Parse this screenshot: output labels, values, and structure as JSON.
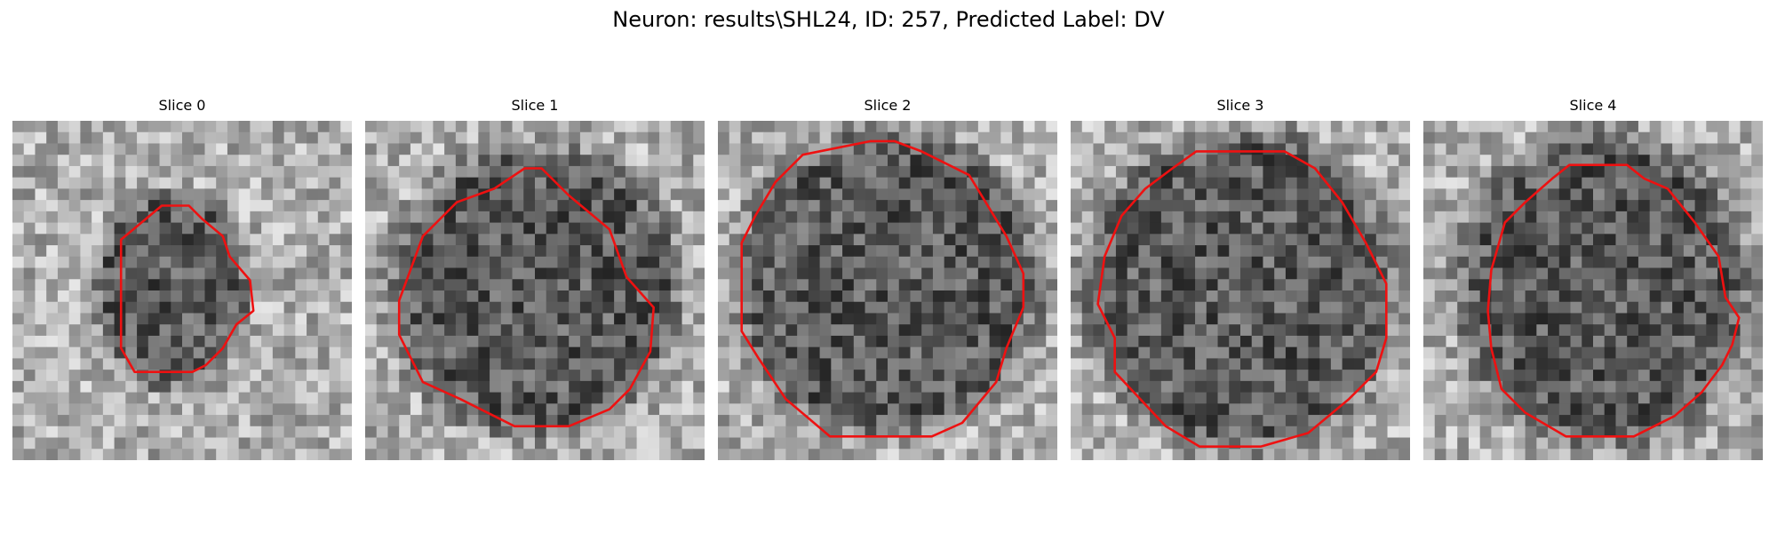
{
  "figure": {
    "title": "Neuron: results\\SHL24, ID: 257, Predicted Label: DV"
  },
  "panels": [
    {
      "title": "Slice 0",
      "seed": 11,
      "center": [
        0.47,
        0.5
      ],
      "radius": [
        0.2,
        0.26
      ],
      "contour": [
        [
          0.32,
          0.35
        ],
        [
          0.44,
          0.25
        ],
        [
          0.52,
          0.25
        ],
        [
          0.56,
          0.29
        ],
        [
          0.62,
          0.34
        ],
        [
          0.64,
          0.4
        ],
        [
          0.7,
          0.47
        ],
        [
          0.71,
          0.56
        ],
        [
          0.66,
          0.6
        ],
        [
          0.62,
          0.67
        ],
        [
          0.57,
          0.72
        ],
        [
          0.53,
          0.74
        ],
        [
          0.36,
          0.74
        ],
        [
          0.32,
          0.67
        ],
        [
          0.32,
          0.55
        ],
        [
          0.32,
          0.44
        ]
      ]
    },
    {
      "title": "Slice 1",
      "seed": 23,
      "center": [
        0.5,
        0.5
      ],
      "radius": [
        0.38,
        0.38
      ],
      "contour": [
        [
          0.38,
          0.2
        ],
        [
          0.47,
          0.14
        ],
        [
          0.52,
          0.14
        ],
        [
          0.6,
          0.22
        ],
        [
          0.72,
          0.32
        ],
        [
          0.77,
          0.46
        ],
        [
          0.85,
          0.55
        ],
        [
          0.84,
          0.68
        ],
        [
          0.78,
          0.79
        ],
        [
          0.72,
          0.85
        ],
        [
          0.6,
          0.9
        ],
        [
          0.44,
          0.9
        ],
        [
          0.28,
          0.82
        ],
        [
          0.17,
          0.77
        ],
        [
          0.1,
          0.63
        ],
        [
          0.1,
          0.53
        ],
        [
          0.17,
          0.34
        ],
        [
          0.27,
          0.24
        ]
      ]
    },
    {
      "title": "Slice 2",
      "seed": 37,
      "center": [
        0.5,
        0.48
      ],
      "radius": [
        0.4,
        0.4
      ],
      "contour": [
        [
          0.25,
          0.1
        ],
        [
          0.45,
          0.06
        ],
        [
          0.52,
          0.06
        ],
        [
          0.6,
          0.09
        ],
        [
          0.74,
          0.16
        ],
        [
          0.85,
          0.34
        ],
        [
          0.9,
          0.45
        ],
        [
          0.9,
          0.55
        ],
        [
          0.85,
          0.67
        ],
        [
          0.82,
          0.77
        ],
        [
          0.72,
          0.89
        ],
        [
          0.63,
          0.93
        ],
        [
          0.33,
          0.93
        ],
        [
          0.2,
          0.82
        ],
        [
          0.12,
          0.7
        ],
        [
          0.07,
          0.62
        ],
        [
          0.07,
          0.36
        ],
        [
          0.11,
          0.28
        ],
        [
          0.17,
          0.18
        ]
      ]
    },
    {
      "title": "Slice 3",
      "seed": 41,
      "center": [
        0.5,
        0.5
      ],
      "radius": [
        0.41,
        0.42
      ],
      "contour": [
        [
          0.3,
          0.14
        ],
        [
          0.37,
          0.09
        ],
        [
          0.63,
          0.09
        ],
        [
          0.72,
          0.14
        ],
        [
          0.8,
          0.24
        ],
        [
          0.87,
          0.36
        ],
        [
          0.93,
          0.48
        ],
        [
          0.93,
          0.64
        ],
        [
          0.9,
          0.74
        ],
        [
          0.82,
          0.82
        ],
        [
          0.7,
          0.92
        ],
        [
          0.56,
          0.96
        ],
        [
          0.38,
          0.96
        ],
        [
          0.28,
          0.9
        ],
        [
          0.13,
          0.74
        ],
        [
          0.13,
          0.64
        ],
        [
          0.08,
          0.54
        ],
        [
          0.1,
          0.4
        ],
        [
          0.15,
          0.28
        ],
        [
          0.22,
          0.2
        ]
      ]
    },
    {
      "title": "Slice 4",
      "seed": 59,
      "center": [
        0.53,
        0.5
      ],
      "radius": [
        0.38,
        0.41
      ],
      "contour": [
        [
          0.38,
          0.17
        ],
        [
          0.43,
          0.13
        ],
        [
          0.6,
          0.13
        ],
        [
          0.65,
          0.17
        ],
        [
          0.72,
          0.2
        ],
        [
          0.8,
          0.3
        ],
        [
          0.87,
          0.4
        ],
        [
          0.89,
          0.52
        ],
        [
          0.93,
          0.58
        ],
        [
          0.91,
          0.66
        ],
        [
          0.88,
          0.72
        ],
        [
          0.82,
          0.8
        ],
        [
          0.74,
          0.87
        ],
        [
          0.62,
          0.93
        ],
        [
          0.42,
          0.93
        ],
        [
          0.3,
          0.86
        ],
        [
          0.23,
          0.79
        ],
        [
          0.2,
          0.67
        ],
        [
          0.19,
          0.56
        ],
        [
          0.2,
          0.44
        ],
        [
          0.24,
          0.3
        ],
        [
          0.3,
          0.24
        ]
      ]
    }
  ],
  "colors": {
    "contour": "#ee1111"
  }
}
